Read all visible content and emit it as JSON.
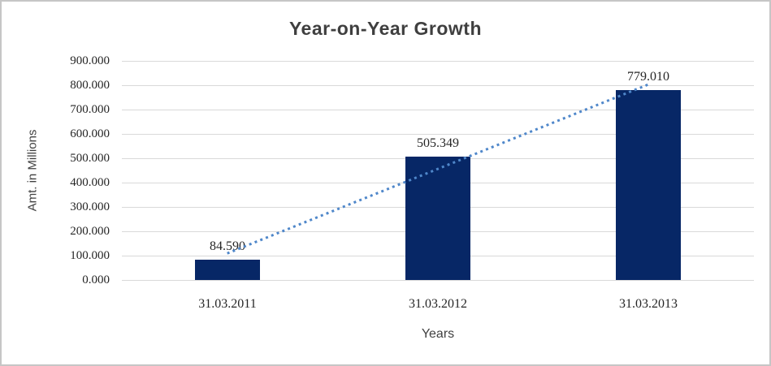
{
  "window": {
    "background": "#ffffff",
    "border_color": "#c6c6c6"
  },
  "chart_data": {
    "type": "bar",
    "title": "Year-on-Year Growth",
    "xlabel": "Years",
    "ylabel": "Amt. in Millions",
    "categories": [
      "31.03.2011",
      "31.03.2012",
      "31.03.2013"
    ],
    "values": [
      84.59,
      505.349,
      779.01
    ],
    "data_labels": [
      "84.590",
      "505.349",
      "779.010"
    ],
    "y_ticks": [
      "900.000",
      "800.000",
      "700.000",
      "600.000",
      "500.000",
      "400.000",
      "300.000",
      "200.000",
      "100.000",
      "0.000"
    ],
    "ylim": [
      0,
      900
    ],
    "grid": "horizontal-gridlines",
    "legend": "none",
    "bar_color": "#072766",
    "gridline_color": "#d9d9d9",
    "label_color": "#262626",
    "title_color": "#3f3f3f",
    "trendline": {
      "type": "linear",
      "style": "dotted",
      "color": "#4f87ca",
      "start_value": 109.1,
      "end_value": 803.5
    }
  }
}
